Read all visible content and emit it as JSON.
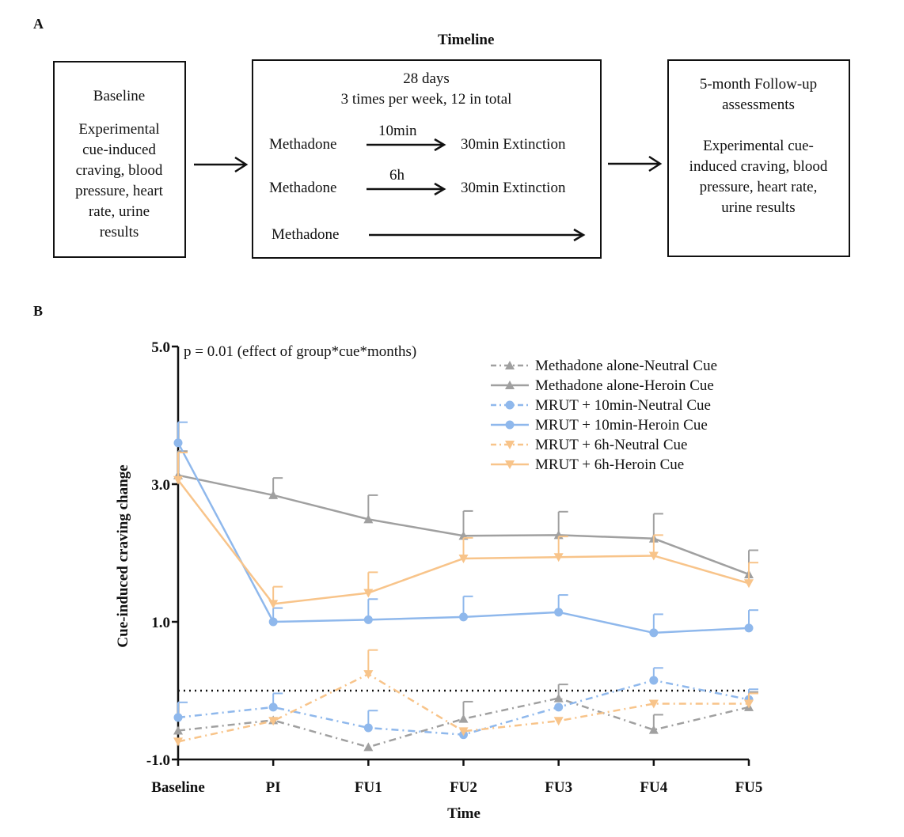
{
  "panelA": {
    "label": "A",
    "timeline_title": "Timeline",
    "box1": {
      "title": "Baseline",
      "lines": [
        "Experimental",
        "cue-induced",
        "craving, blood",
        "pressure, heart",
        "rate, urine",
        "results"
      ]
    },
    "box2": {
      "header": [
        "28 days",
        "3 times per week, 12 in total"
      ],
      "rows": [
        {
          "left": "Methadone",
          "arrow_label": "10min",
          "right": "30min Extinction"
        },
        {
          "left": "Methadone",
          "arrow_label": "6h",
          "right": "30min Extinction"
        },
        {
          "left": "Methadone",
          "arrow_label": "",
          "right": ""
        }
      ]
    },
    "box3": {
      "title_lines": [
        "5-month Follow-up",
        "assessments"
      ],
      "lines": [
        "Experimental cue-",
        "induced craving, blood",
        "pressure, heart rate,",
        "urine results"
      ]
    }
  },
  "panelB": {
    "label": "B"
  },
  "chart_data": {
    "type": "line",
    "annotation": "p = 0.01 (effect of group*cue*months)",
    "xlabel": "Time",
    "ylabel": "Cue-induced craving change",
    "categories": [
      "Baseline",
      "PI",
      "FU1",
      "FU2",
      "FU3",
      "FU4",
      "FU5"
    ],
    "ylim": [
      -1.0,
      5.0
    ],
    "yticks": [
      -1.0,
      1.0,
      3.0,
      5.0
    ],
    "ytick_labels": [
      "-1.0",
      "1.0",
      "3.0",
      "5.0"
    ],
    "reference_line": 0,
    "legend_position": "top-right",
    "series": [
      {
        "name": "Methadone alone-Neutral Cue",
        "color": "#a0a0a0",
        "dash": "dashdot",
        "marker": "triangle-up",
        "values": [
          -0.58,
          -0.43,
          -0.82,
          -0.41,
          -0.11,
          -0.57,
          -0.24
        ],
        "errors": [
          0,
          0,
          0,
          0.25,
          0.2,
          0.22,
          0.22
        ]
      },
      {
        "name": "Methadone alone-Heroin Cue",
        "color": "#a0a0a0",
        "dash": "solid",
        "marker": "triangle-up",
        "values": [
          3.13,
          2.84,
          2.49,
          2.25,
          2.26,
          2.21,
          1.69
        ],
        "errors": [
          0.35,
          0.25,
          0.35,
          0.36,
          0.34,
          0.36,
          0.35
        ]
      },
      {
        "name": "MRUT + 10min-Neutral Cue",
        "color": "#8fb8ec",
        "dash": "dashdot",
        "marker": "circle",
        "values": [
          -0.39,
          -0.24,
          -0.54,
          -0.64,
          -0.24,
          0.15,
          -0.13
        ],
        "errors": [
          0.22,
          0.2,
          0.25,
          0,
          0,
          0.18,
          0.15
        ]
      },
      {
        "name": "MRUT + 10min-Heroin Cue",
        "color": "#8fb8ec",
        "dash": "solid",
        "marker": "circle",
        "values": [
          3.6,
          1.0,
          1.03,
          1.07,
          1.14,
          0.84,
          0.91
        ],
        "errors": [
          0.3,
          0.2,
          0.3,
          0.3,
          0.25,
          0.27,
          0.26
        ]
      },
      {
        "name": "MRUT + 6h-Neutral Cue",
        "color": "#f8c48a",
        "dash": "dashdot",
        "marker": "triangle-down",
        "values": [
          -0.74,
          -0.44,
          0.24,
          -0.59,
          -0.44,
          -0.19,
          -0.19
        ],
        "errors": [
          0,
          0,
          0.35,
          0,
          0,
          0,
          0.15
        ]
      },
      {
        "name": "MRUT + 6h-Heroin Cue",
        "color": "#f8c48a",
        "dash": "solid",
        "marker": "triangle-down",
        "values": [
          3.06,
          1.26,
          1.42,
          1.92,
          1.94,
          1.96,
          1.56
        ],
        "errors": [
          0.4,
          0.25,
          0.3,
          0.3,
          0.3,
          0.3,
          0.3
        ]
      }
    ]
  }
}
